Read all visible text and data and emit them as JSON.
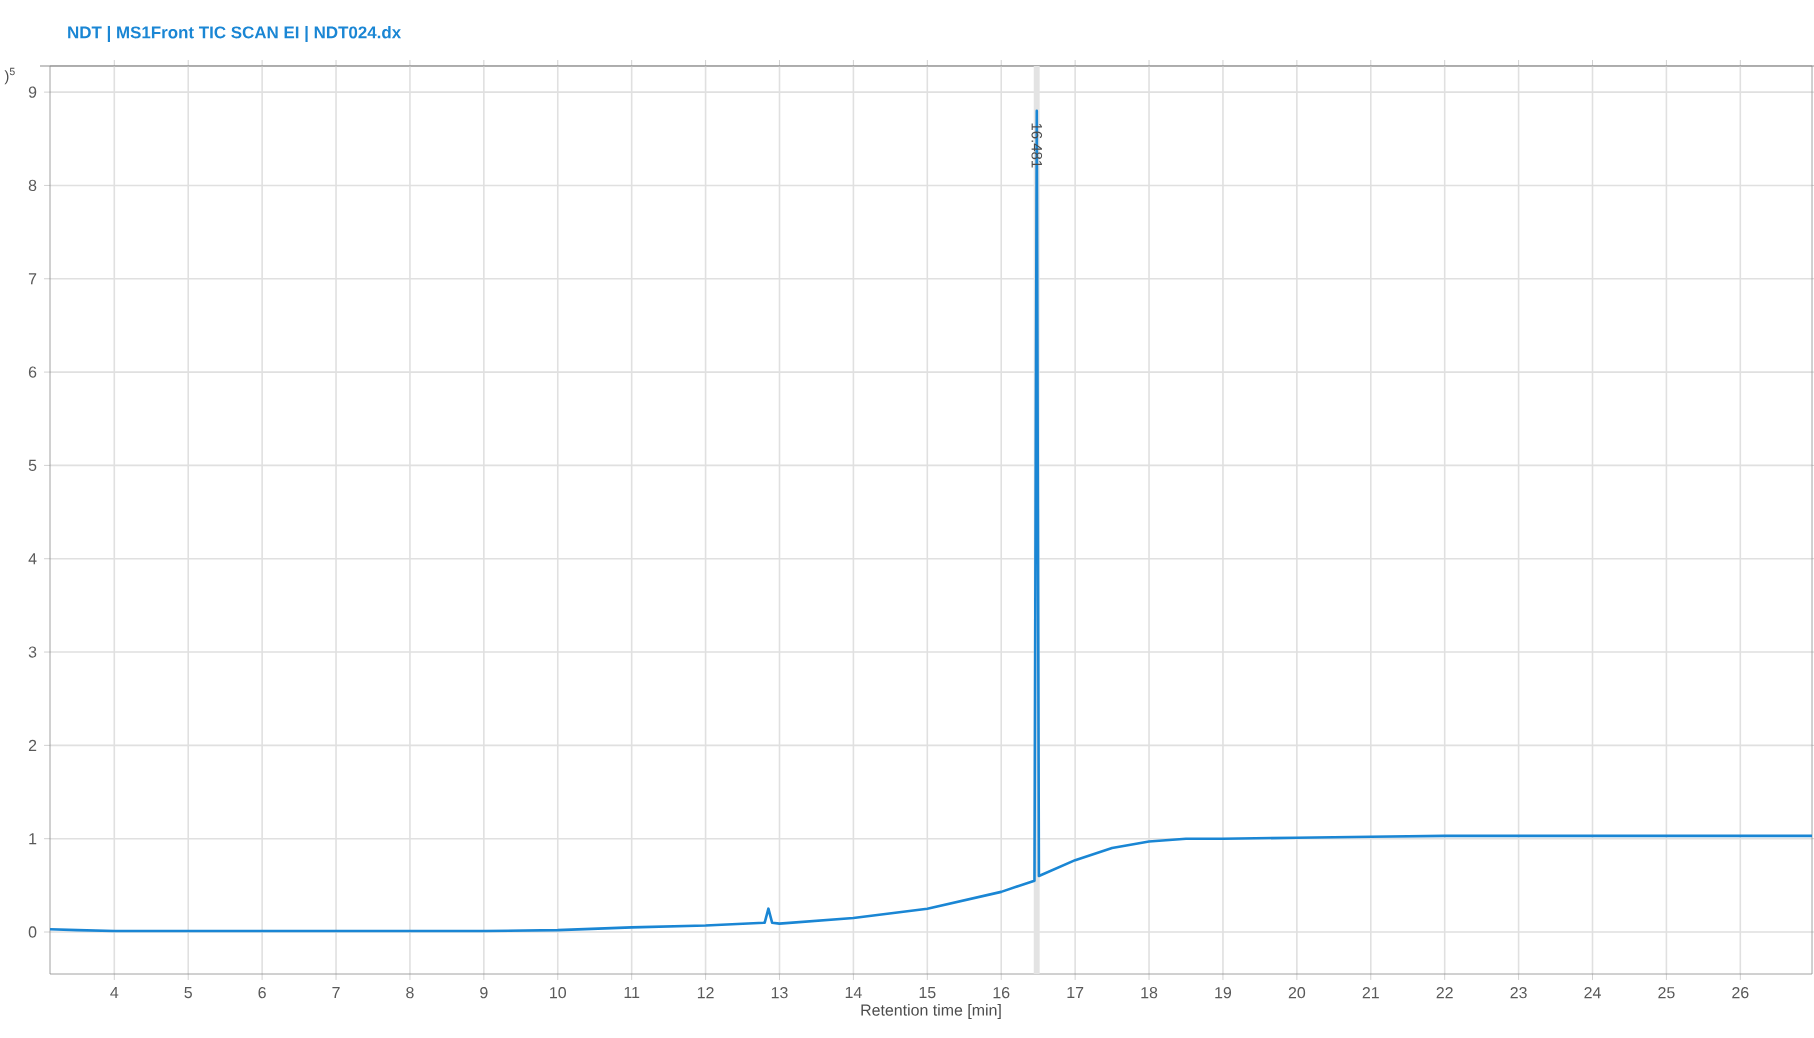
{
  "chart_data": {
    "type": "line",
    "title": "NDT | MS1Front TIC  SCAN EI | NDT024.dx",
    "xlabel": "Retention time [min]",
    "ylabel": ")$^{5}$",
    "xlim": [
      3.13,
      26.97
    ],
    "ylim": [
      -0.45,
      9.28
    ],
    "xticks": [
      4,
      5,
      6,
      7,
      8,
      9,
      10,
      11,
      12,
      13,
      14,
      15,
      16,
      17,
      18,
      19,
      20,
      21,
      22,
      23,
      24,
      25,
      26
    ],
    "yticks": [
      0,
      1,
      2,
      3,
      4,
      5,
      6,
      7,
      8,
      9
    ],
    "grid": true,
    "marker": "none",
    "line_style": "solid",
    "bands": [
      {
        "axis": "x",
        "from": 16.44,
        "to": 16.52,
        "color": "#e3e3e3"
      }
    ],
    "annotations": [
      {
        "text": "16.481",
        "x": 16.481,
        "y": 8.7
      }
    ],
    "series": [
      {
        "color": "#1a86d4",
        "x": [
          3.13,
          3.5,
          4,
          5,
          6,
          7,
          8,
          9,
          10,
          11,
          12,
          12.8,
          12.85,
          12.9,
          13,
          14,
          15,
          16,
          16.45,
          16.481,
          16.51,
          17,
          17.5,
          18,
          18.5,
          19,
          20,
          21,
          22,
          23,
          24,
          25,
          26,
          26.97
        ],
        "values": [
          0.03,
          0.02,
          0.01,
          0.01,
          0.01,
          0.01,
          0.01,
          0.01,
          0.02,
          0.05,
          0.07,
          0.1,
          0.25,
          0.1,
          0.09,
          0.15,
          0.25,
          0.43,
          0.55,
          8.8,
          0.6,
          0.77,
          0.9,
          0.97,
          1.0,
          1.0,
          1.01,
          1.02,
          1.03,
          1.03,
          1.03,
          1.03,
          1.03,
          1.03
        ]
      }
    ]
  }
}
